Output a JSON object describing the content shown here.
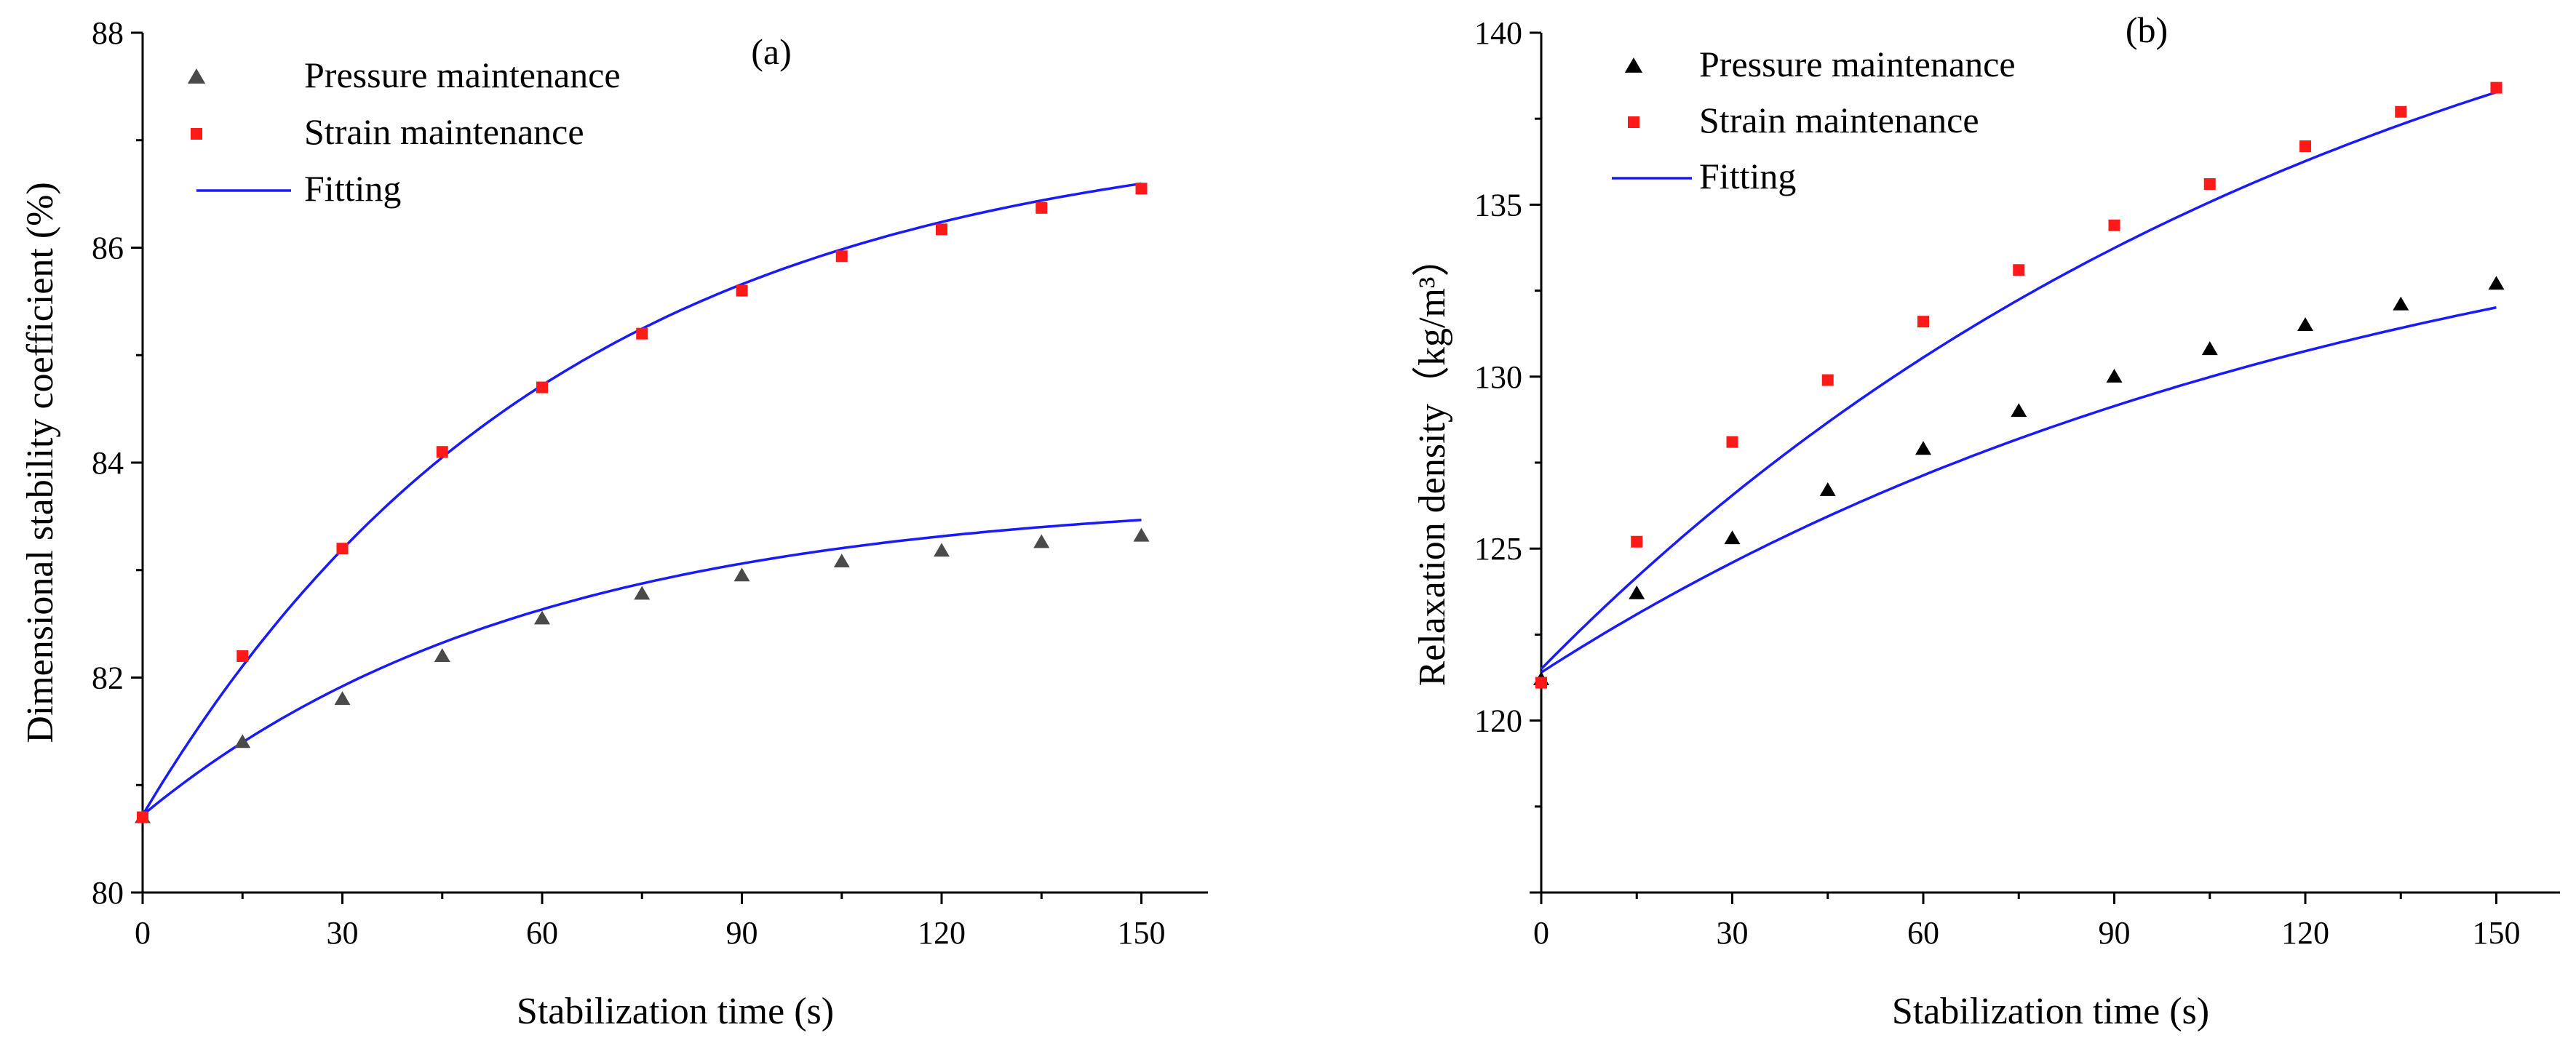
{
  "colors": {
    "pressure_a": "#4a4a4a",
    "pressure_b": "#000000",
    "strain": "#ff1a1a",
    "fitting": "#1a1aff",
    "axis": "#000000"
  },
  "chart_data": [
    {
      "type": "scatter",
      "panel_label": "(a)",
      "xlabel": "Stabilization time (s)",
      "ylabel": "Dimensional stability coefficient (%)",
      "xlim": [
        0,
        160
      ],
      "ylim": [
        80,
        88
      ],
      "xticks": [
        0,
        30,
        60,
        90,
        120,
        150
      ],
      "yticks": [
        80,
        82,
        84,
        86,
        88
      ],
      "legend_position": "top-left",
      "legend": [
        {
          "label": "Pressure maintenance",
          "marker": "triangle",
          "series": 0
        },
        {
          "label": "Strain maintenance",
          "marker": "square",
          "series": 1
        },
        {
          "label": "Fitting",
          "marker": "line"
        }
      ],
      "series": [
        {
          "name": "Pressure maintenance",
          "marker": "triangle",
          "x": [
            0,
            15,
            30,
            45,
            60,
            75,
            90,
            105,
            120,
            135,
            150
          ],
          "y": [
            80.7,
            81.4,
            81.8,
            82.2,
            82.55,
            82.78,
            82.95,
            83.08,
            83.18,
            83.26,
            83.32
          ],
          "fit": {
            "y0": 80.72,
            "A": 2.97,
            "tau": 58
          }
        },
        {
          "name": "Strain maintenance",
          "marker": "square",
          "x": [
            0,
            15,
            30,
            45,
            60,
            75,
            90,
            105,
            120,
            135,
            150
          ],
          "y": [
            80.7,
            82.2,
            83.2,
            84.1,
            84.7,
            85.2,
            85.6,
            85.92,
            86.17,
            86.37,
            86.55
          ],
          "fit": {
            "y0": 80.72,
            "A": 6.45,
            "tau": 62
          }
        }
      ]
    },
    {
      "type": "scatter",
      "panel_label": "(b)",
      "xlabel": "Stabilization time (s)",
      "ylabel": "Relaxation density（kg/m³）",
      "xlim": [
        0,
        160
      ],
      "ylim": [
        115,
        140
      ],
      "xticks": [
        0,
        30,
        60,
        90,
        120,
        150
      ],
      "yticks": [
        120,
        125,
        130,
        135,
        140
      ],
      "legend_position": "top-left",
      "legend": [
        {
          "label": "Pressure maintenance",
          "marker": "triangle",
          "series": 0
        },
        {
          "label": "Strain maintenance",
          "marker": "square",
          "series": 1
        },
        {
          "label": "Fitting",
          "marker": "line"
        }
      ],
      "series": [
        {
          "name": "Pressure maintenance",
          "marker": "triangle",
          "x": [
            0,
            15,
            30,
            45,
            60,
            75,
            90,
            105,
            120,
            135,
            150
          ],
          "y": [
            121.2,
            123.7,
            125.3,
            126.7,
            127.9,
            129.0,
            130.0,
            130.8,
            131.5,
            132.1,
            132.7
          ],
          "fit": {
            "y0": 121.4,
            "A": 15.5,
            "tau": 130
          }
        },
        {
          "name": "Strain maintenance",
          "marker": "square",
          "x": [
            0,
            15,
            30,
            45,
            60,
            75,
            90,
            105,
            120,
            135,
            150
          ],
          "y": [
            121.1,
            125.2,
            128.1,
            129.9,
            131.6,
            133.1,
            134.4,
            135.6,
            136.7,
            137.7,
            138.4
          ],
          "fit": {
            "y0": 121.5,
            "A": 24.5,
            "tau": 130
          }
        }
      ]
    }
  ]
}
